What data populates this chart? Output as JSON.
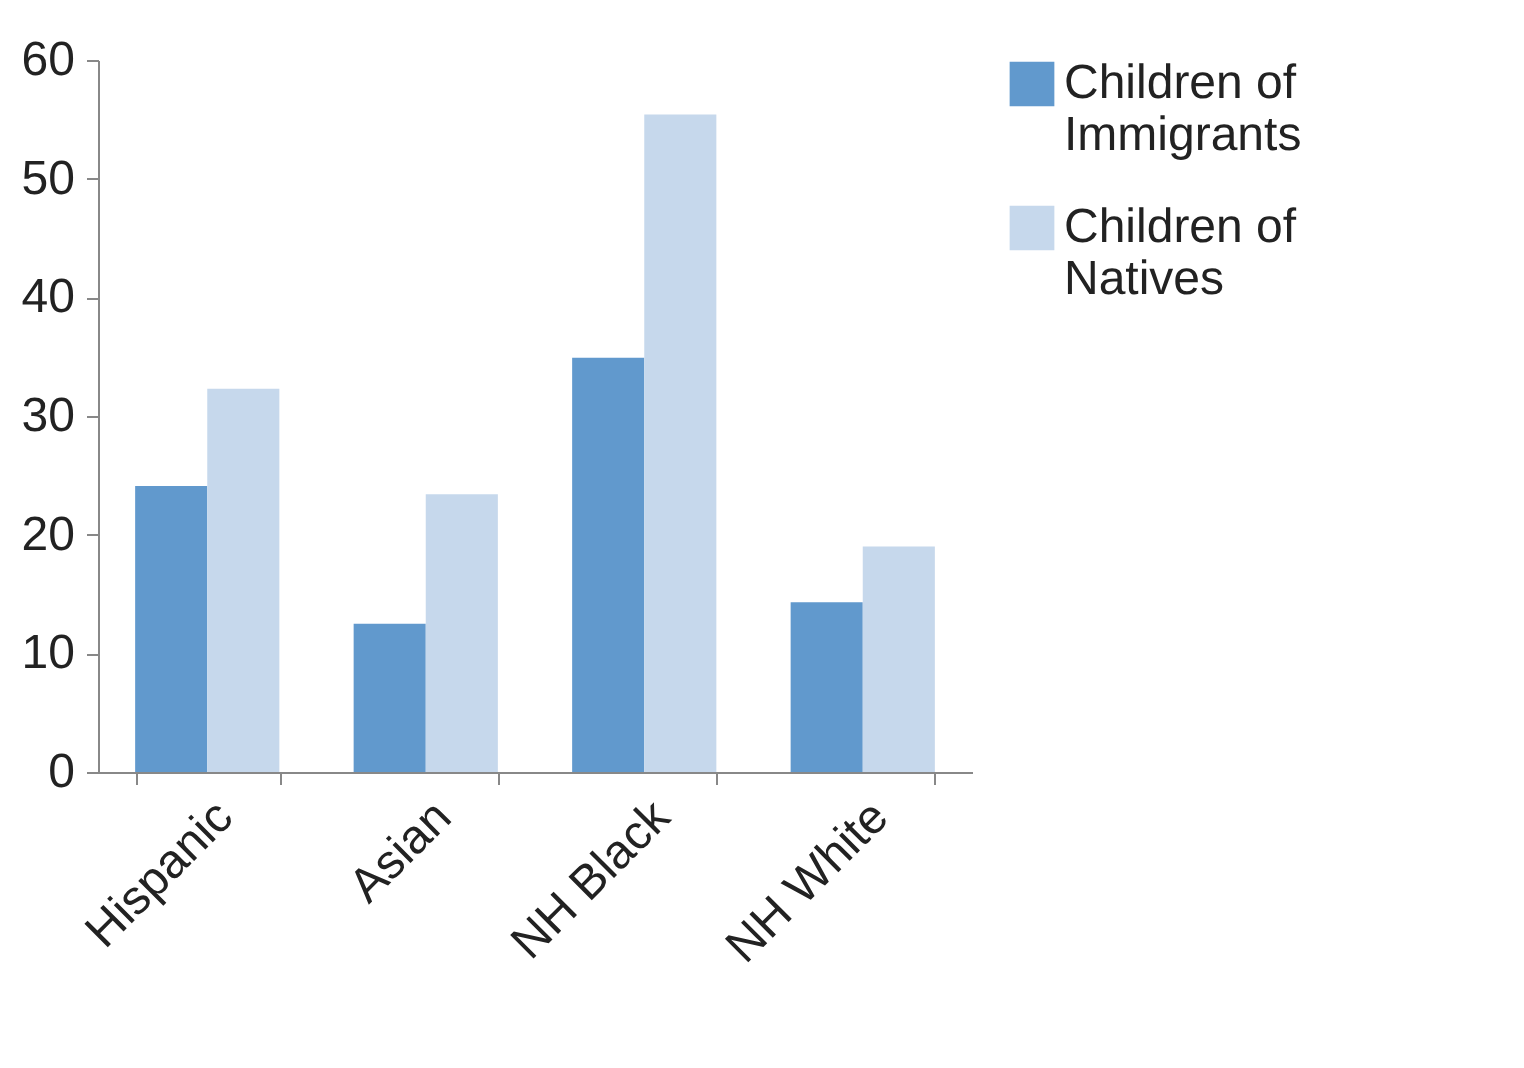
{
  "chart_data": {
    "type": "bar",
    "categories": [
      "Hispanic",
      "Asian",
      "NH Black",
      "NH White"
    ],
    "series": [
      {
        "name": "Children of Immigrants",
        "color": "#6199cd",
        "values": [
          24.1,
          12.5,
          34.9,
          14.3
        ]
      },
      {
        "name": "Children of Natives",
        "color": "#c6d8ec",
        "values": [
          32.3,
          23.4,
          55.4,
          19.0
        ]
      }
    ],
    "ylim": [
      0,
      60
    ],
    "yticks": [
      0,
      10,
      20,
      30,
      40,
      50,
      60
    ],
    "grid": false,
    "legend": "right"
  }
}
